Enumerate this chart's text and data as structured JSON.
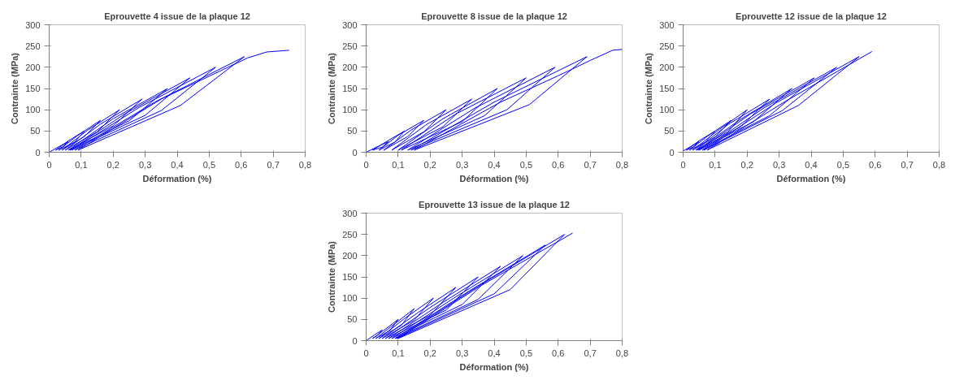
{
  "chart_data": [
    {
      "type": "line",
      "title": "Eprouvette 4 issue de la plaque 12",
      "xlabel": "Déformation (%)",
      "ylabel": "Contrainte (MPa)",
      "xlim": [
        0,
        0.8
      ],
      "ylim": [
        0,
        300
      ],
      "xticks": [
        0,
        {
          "value": 0.1,
          "label": "0,1"
        },
        {
          "value": 0.2,
          "label": "0,2"
        },
        {
          "value": 0.3,
          "label": "0,3"
        },
        {
          "value": 0.4,
          "label": "0,4"
        },
        {
          "value": 0.5,
          "label": "0,5"
        },
        {
          "value": 0.6,
          "label": "0,6"
        },
        {
          "value": 0.7,
          "label": "0,7"
        },
        {
          "value": 0.8,
          "label": "0,8"
        }
      ],
      "yticks": [
        0,
        50,
        100,
        150,
        200,
        250,
        300
      ],
      "grid": false,
      "series": [
        {
          "color": "#0000ff",
          "x": [
            0,
            0.03,
            0.06,
            0.04,
            0.02,
            0.06,
            0.11,
            0.08,
            0.03,
            0.09,
            0.16,
            0.11,
            0.04,
            0.12,
            0.22,
            0.15,
            0.05,
            0.16,
            0.29,
            0.2,
            0.06,
            0.2,
            0.37,
            0.25,
            0.065,
            0.24,
            0.44,
            0.3,
            0.07,
            0.28,
            0.52,
            0.35,
            0.08,
            0.33,
            0.61,
            0.41,
            0.09,
            0.35,
            0.62,
            0.68,
            0.75
          ],
          "values": [
            0,
            13,
            25,
            12,
            5,
            27,
            50,
            24,
            5,
            40,
            75,
            37,
            5,
            52,
            100,
            48,
            5,
            66,
            125,
            62,
            5,
            79,
            150,
            74,
            5,
            92,
            175,
            87,
            5,
            105,
            200,
            98,
            5,
            118,
            225,
            110,
            5,
            125,
            222,
            236,
            240
          ]
        }
      ]
    },
    {
      "type": "line",
      "title": "Eprouvette 8 issue de la plaque 12",
      "xlabel": "Déformation (%)",
      "ylabel": "Contrainte (MPa)",
      "xlim": [
        0,
        0.8
      ],
      "ylim": [
        0,
        300
      ],
      "xticks": [
        0,
        {
          "value": 0.1,
          "label": "0,1"
        },
        {
          "value": 0.2,
          "label": "0,2"
        },
        {
          "value": 0.3,
          "label": "0,3"
        },
        {
          "value": 0.4,
          "label": "0,4"
        },
        {
          "value": 0.5,
          "label": "0,5"
        },
        {
          "value": 0.6,
          "label": "0,6"
        },
        {
          "value": 0.7,
          "label": "0,7"
        },
        {
          "value": 0.8,
          "label": "0,8"
        }
      ],
      "yticks": [
        0,
        50,
        100,
        150,
        200,
        250,
        300
      ],
      "grid": false,
      "series": [
        {
          "color": "#0000ff",
          "x": [
            0,
            0.035,
            0.07,
            0.05,
            0.02,
            0.07,
            0.12,
            0.09,
            0.04,
            0.1,
            0.18,
            0.13,
            0.055,
            0.14,
            0.25,
            0.18,
            0.08,
            0.19,
            0.33,
            0.24,
            0.1,
            0.24,
            0.41,
            0.3,
            0.11,
            0.28,
            0.5,
            0.37,
            0.13,
            0.34,
            0.59,
            0.44,
            0.14,
            0.4,
            0.69,
            0.51,
            0.15,
            0.42,
            0.6,
            0.7,
            0.77,
            0.8
          ],
          "values": [
            0,
            13,
            25,
            12,
            5,
            28,
            50,
            24,
            5,
            40,
            75,
            37,
            5,
            52,
            100,
            48,
            5,
            66,
            125,
            60,
            5,
            79,
            150,
            72,
            5,
            90,
            175,
            86,
            5,
            104,
            200,
            100,
            5,
            118,
            225,
            112,
            5,
            118,
            180,
            216,
            240,
            242
          ]
        }
      ]
    },
    {
      "type": "line",
      "title": "Eprouvette 12 issue de la plaque 12",
      "xlabel": "Déformation (%)",
      "ylabel": "Contrainte (MPa)",
      "xlim": [
        0,
        0.8
      ],
      "ylim": [
        0,
        300
      ],
      "xticks": [
        0,
        {
          "value": 0.1,
          "label": "0,1"
        },
        {
          "value": 0.2,
          "label": "0,2"
        },
        {
          "value": 0.3,
          "label": "0,3"
        },
        {
          "value": 0.4,
          "label": "0,4"
        },
        {
          "value": 0.5,
          "label": "0,5"
        },
        {
          "value": 0.6,
          "label": "0,6"
        },
        {
          "value": 0.7,
          "label": "0,7"
        },
        {
          "value": 0.8,
          "label": "0,8"
        }
      ],
      "yticks": [
        0,
        50,
        100,
        150,
        200,
        250,
        300
      ],
      "grid": false,
      "series": [
        {
          "color": "#0000ff",
          "x": [
            0,
            0.025,
            0.05,
            0.03,
            0.01,
            0.05,
            0.1,
            0.07,
            0.02,
            0.08,
            0.15,
            0.1,
            0.03,
            0.11,
            0.2,
            0.14,
            0.04,
            0.14,
            0.27,
            0.18,
            0.045,
            0.18,
            0.34,
            0.22,
            0.05,
            0.21,
            0.41,
            0.27,
            0.06,
            0.25,
            0.48,
            0.31,
            0.065,
            0.29,
            0.55,
            0.36,
            0.075,
            0.32,
            0.59
          ],
          "values": [
            3,
            14,
            25,
            12,
            5,
            27,
            50,
            24,
            5,
            40,
            75,
            36,
            5,
            52,
            100,
            48,
            5,
            65,
            125,
            60,
            5,
            78,
            150,
            72,
            5,
            90,
            175,
            86,
            5,
            103,
            200,
            98,
            5,
            116,
            225,
            110,
            5,
            120,
            237
          ]
        }
      ]
    },
    {
      "type": "line",
      "title": "Eprouvette 13 issue de la plaque 12",
      "xlabel": "Déformation (%)",
      "ylabel": "Contrainte (MPa)",
      "xlim": [
        0,
        0.8
      ],
      "ylim": [
        0,
        300
      ],
      "xticks": [
        0,
        {
          "value": 0.1,
          "label": "0,1"
        },
        {
          "value": 0.2,
          "label": "0,2"
        },
        {
          "value": 0.3,
          "label": "0,3"
        },
        {
          "value": 0.4,
          "label": "0,4"
        },
        {
          "value": 0.5,
          "label": "0,5"
        },
        {
          "value": 0.6,
          "label": "0,6"
        },
        {
          "value": 0.7,
          "label": "0,7"
        },
        {
          "value": 0.8,
          "label": "0,8"
        }
      ],
      "yticks": [
        0,
        50,
        100,
        150,
        200,
        250,
        300
      ],
      "grid": false,
      "series": [
        {
          "color": "#0000ff",
          "x": [
            0,
            0.025,
            0.05,
            0.035,
            0.02,
            0.06,
            0.1,
            0.075,
            0.03,
            0.09,
            0.15,
            0.11,
            0.04,
            0.12,
            0.21,
            0.15,
            0.05,
            0.16,
            0.28,
            0.2,
            0.06,
            0.2,
            0.35,
            0.25,
            0.07,
            0.24,
            0.42,
            0.3,
            0.08,
            0.28,
            0.49,
            0.35,
            0.09,
            0.32,
            0.56,
            0.4,
            0.095,
            0.35,
            0.62,
            0.45,
            0.1,
            0.36,
            0.645
          ],
          "values": [
            0,
            13,
            25,
            12,
            5,
            27,
            50,
            24,
            5,
            40,
            75,
            36,
            5,
            52,
            100,
            48,
            5,
            65,
            125,
            60,
            5,
            78,
            150,
            72,
            5,
            90,
            175,
            85,
            5,
            103,
            200,
            97,
            5,
            116,
            225,
            110,
            5,
            128,
            250,
            120,
            5,
            130,
            253
          ]
        }
      ]
    }
  ]
}
